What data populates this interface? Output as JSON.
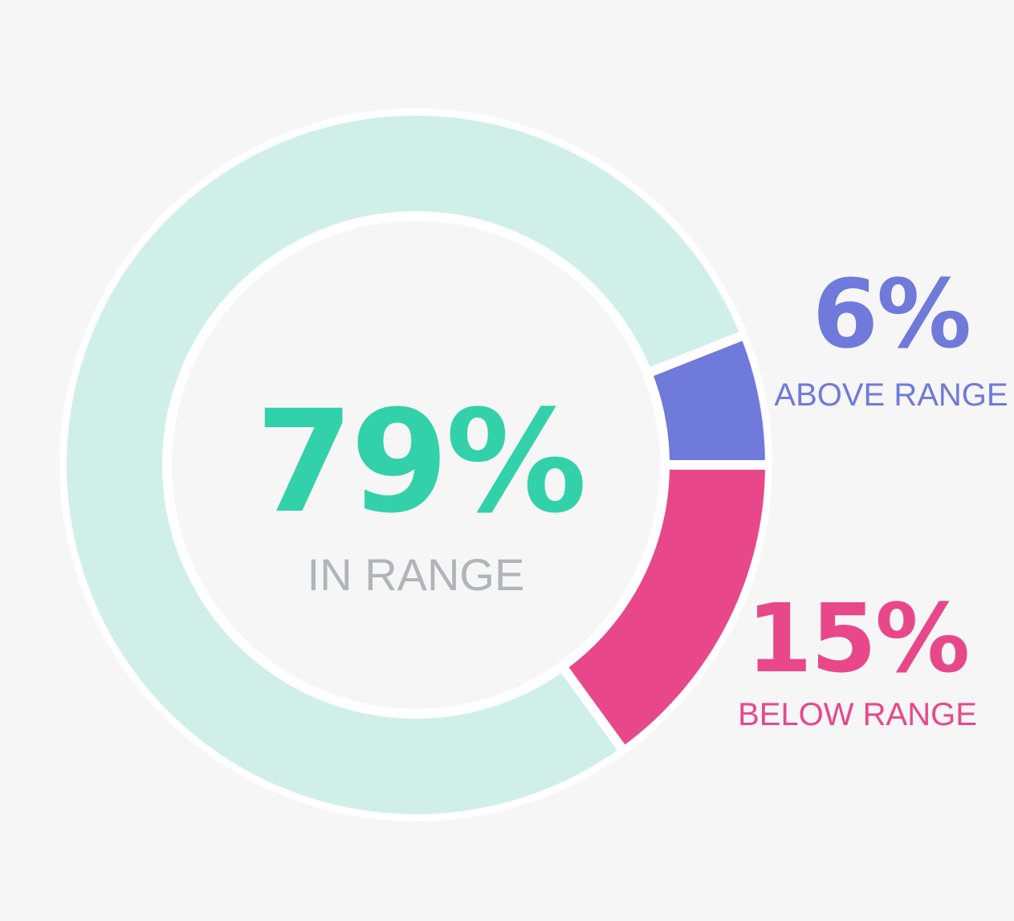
{
  "chart_data": {
    "type": "pie",
    "variant": "donut",
    "segments": [
      {
        "label": "IN RANGE",
        "value": 79,
        "display": "79%",
        "color": "#d0efe8",
        "text_color": "#33d1a9"
      },
      {
        "label": "ABOVE RANGE",
        "value": 6,
        "display": "6%",
        "color": "#707adb",
        "text_color": "#707adb"
      },
      {
        "label": "BELOW RANGE",
        "value": 15,
        "display": "15%",
        "color": "#e8488a",
        "text_color": "#e8488a"
      }
    ],
    "center_label_color": "#b1b4b8",
    "background": "#f6f6f6",
    "separator_color": "#ffffff"
  }
}
